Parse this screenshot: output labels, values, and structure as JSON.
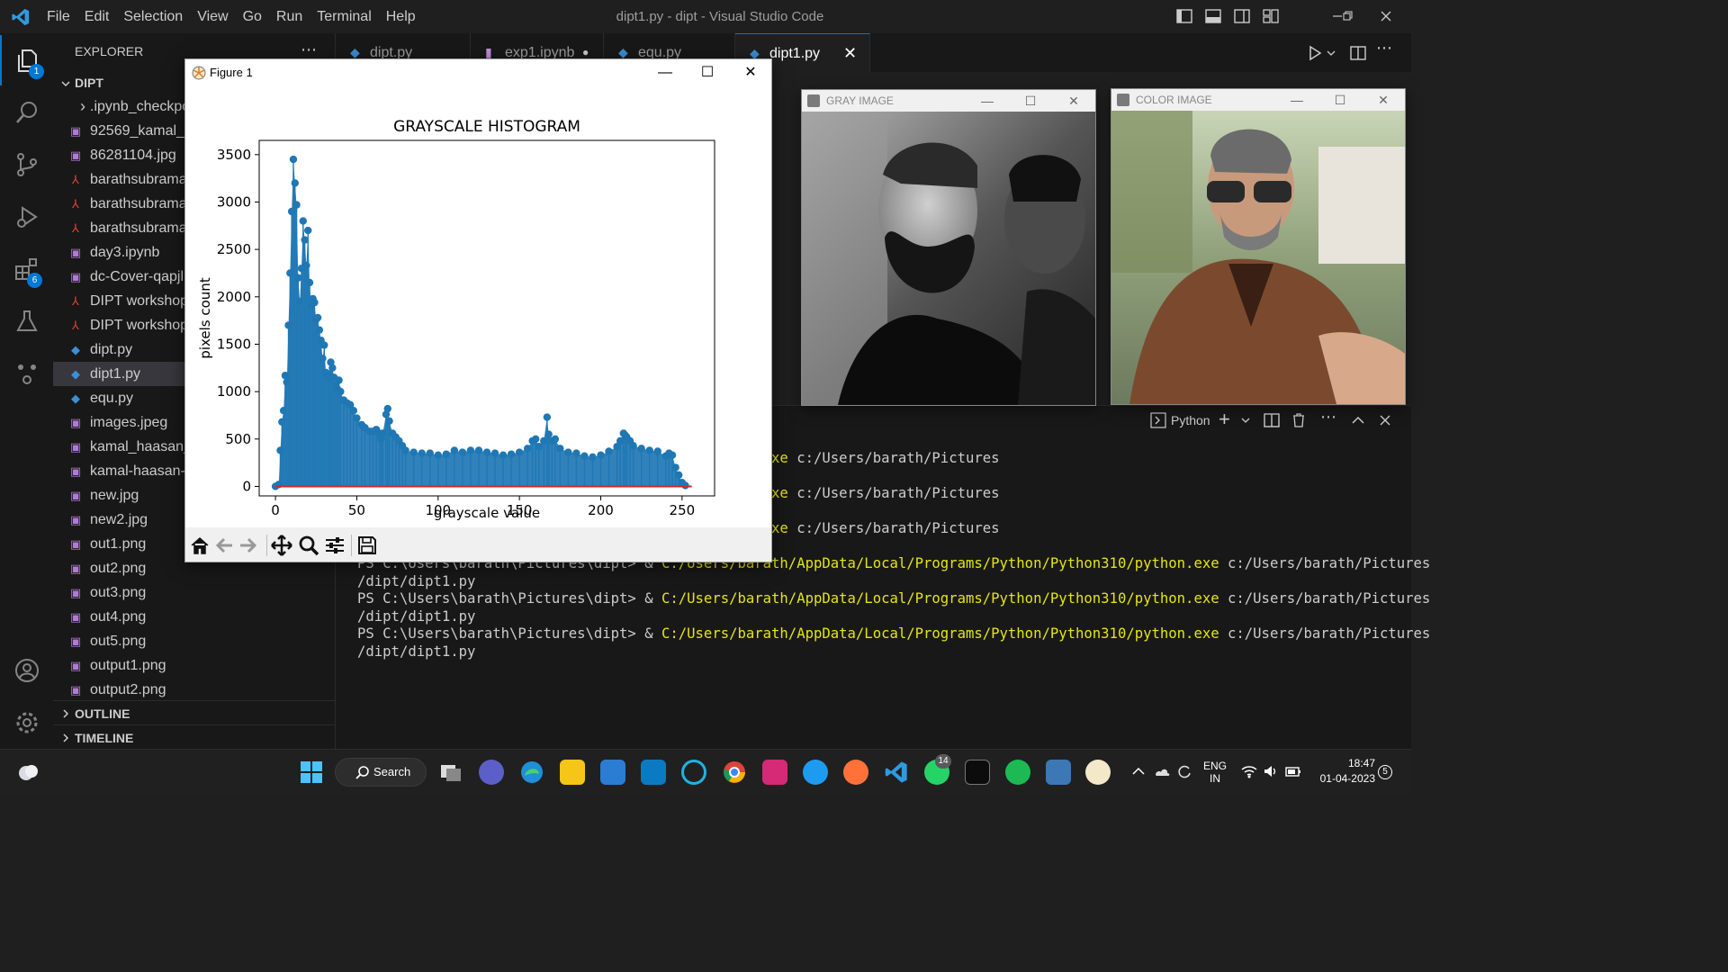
{
  "menu": {
    "items": [
      "File",
      "Edit",
      "Selection",
      "View",
      "Go",
      "Run",
      "Terminal",
      "Help"
    ],
    "window_title": "dipt1.py - dipt - Visual Studio Code"
  },
  "activity": {
    "explorer_badge": "1",
    "extensions_badge": "6"
  },
  "sidebar": {
    "header": "EXPLORER",
    "folder": "DIPT",
    "files": [
      {
        "name": ".ipynb_checkpo",
        "kind": "folder"
      },
      {
        "name": "92569_kamal_h",
        "kind": "image"
      },
      {
        "name": "86281104.jpg",
        "kind": "image"
      },
      {
        "name": "barathsubrama",
        "kind": "pdf"
      },
      {
        "name": "barathsubrama",
        "kind": "pdf"
      },
      {
        "name": "barathsubrama",
        "kind": "pdf"
      },
      {
        "name": "day3.ipynb",
        "kind": "notebook"
      },
      {
        "name": "dc-Cover-qapjl",
        "kind": "image"
      },
      {
        "name": "DIPT workshop",
        "kind": "pdf"
      },
      {
        "name": "DIPT workshop",
        "kind": "pdf"
      },
      {
        "name": "dipt.py",
        "kind": "python"
      },
      {
        "name": "dipt1.py",
        "kind": "python"
      },
      {
        "name": "equ.py",
        "kind": "python"
      },
      {
        "name": "images.jpeg",
        "kind": "image"
      },
      {
        "name": "kamal_haasan_",
        "kind": "image"
      },
      {
        "name": "kamal-haasan-",
        "kind": "image"
      },
      {
        "name": "new.jpg",
        "kind": "image"
      },
      {
        "name": "new2.jpg",
        "kind": "image"
      },
      {
        "name": "out1.png",
        "kind": "image"
      },
      {
        "name": "out2.png",
        "kind": "image"
      },
      {
        "name": "out3.png",
        "kind": "image"
      },
      {
        "name": "out4.png",
        "kind": "image"
      },
      {
        "name": "out5.png",
        "kind": "image"
      },
      {
        "name": "output1.png",
        "kind": "image"
      },
      {
        "name": "output2.png",
        "kind": "image"
      }
    ],
    "outline": "OUTLINE",
    "timeline": "TIMELINE"
  },
  "tabs": [
    {
      "label": "dipt.py"
    },
    {
      "label": "exp1.ipynb"
    },
    {
      "label": "equ.py"
    },
    {
      "label": "dipt1.py"
    }
  ],
  "terminal": {
    "shell_label": "Python",
    "lines": [
      {
        "prompt": "",
        "cmd": "/AppData/Local/Programs/Python/Python310/python.exe",
        "arg": " c:/Users/barath/Pictures"
      },
      {
        "prompt": "",
        "cmd": "/AppData/Local/Programs/Python/Python310/python.exe",
        "arg": " c:/Users/barath/Pictures"
      },
      {
        "prompt": "",
        "cmd": "/AppData/Local/Programs/Python/Python310/python.exe",
        "arg": " c:/Users/barath/Pictures"
      },
      {
        "prompt": "PS C:\\Users\\barath\\Pictures\\dipt> & ",
        "cmd": "C:/Users/barath/AppData/Local/Programs/Python/Python310/python.exe",
        "arg": " c:/Users/barath/Pictures"
      },
      {
        "prompt": "/dipt/dipt1.py",
        "cmd": "",
        "arg": ""
      },
      {
        "prompt": "PS C:\\Users\\barath\\Pictures\\dipt> & ",
        "cmd": "C:/Users/barath/AppData/Local/Programs/Python/Python310/python.exe",
        "arg": " c:/Users/barath/Pictures"
      },
      {
        "prompt": "/dipt/dipt1.py",
        "cmd": "",
        "arg": ""
      },
      {
        "prompt": "PS C:\\Users\\barath\\Pictures\\dipt> & ",
        "cmd": "C:/Users/barath/AppData/Local/Programs/Python/Python310/python.exe",
        "arg": " c:/Users/barath/Pictures"
      },
      {
        "prompt": "/dipt/dipt1.py",
        "cmd": "",
        "arg": ""
      }
    ]
  },
  "figure": {
    "window_title": "Figure 1"
  },
  "gray_window": {
    "title": "GRAY IMAGE"
  },
  "color_window": {
    "title": "COLOR IMAGE"
  },
  "taskbar": {
    "search_label": "Search",
    "lang_top": "ENG",
    "lang_bottom": "IN",
    "time": "18:47",
    "date": "01-04-2023",
    "notif_count": "5",
    "whatsapp_badge": "14"
  },
  "chart_data": {
    "type": "stem",
    "title": "GRAYSCALE HISTOGRAM",
    "xlabel": "grayscale value",
    "ylabel": "pixels count",
    "xlim": [
      -10,
      270
    ],
    "ylim": [
      -100,
      3650
    ],
    "xticks": [
      0,
      50,
      100,
      150,
      200,
      250
    ],
    "yticks": [
      0,
      500,
      1000,
      1500,
      2000,
      2500,
      3000,
      3500
    ],
    "color": "#1f77b4",
    "baseline_color": "#d62728",
    "points": [
      [
        0,
        0
      ],
      [
        2,
        20
      ],
      [
        3,
        380
      ],
      [
        4,
        680
      ],
      [
        5,
        800
      ],
      [
        6,
        1170
      ],
      [
        7,
        1100
      ],
      [
        8,
        1700
      ],
      [
        9,
        2250
      ],
      [
        10,
        2900
      ],
      [
        11,
        3450
      ],
      [
        12,
        3200
      ],
      [
        13,
        2970
      ],
      [
        14,
        2200
      ],
      [
        15,
        1950
      ],
      [
        16,
        2300
      ],
      [
        17,
        2800
      ],
      [
        18,
        2600
      ],
      [
        19,
        2330
      ],
      [
        20,
        2700
      ],
      [
        21,
        2150
      ],
      [
        22,
        1900
      ],
      [
        23,
        1980
      ],
      [
        24,
        1940
      ],
      [
        25,
        1760
      ],
      [
        26,
        1780
      ],
      [
        27,
        1650
      ],
      [
        28,
        1540
      ],
      [
        29,
        1350
      ],
      [
        30,
        1490
      ],
      [
        31,
        1200
      ],
      [
        32,
        1190
      ],
      [
        33,
        1150
      ],
      [
        34,
        1310
      ],
      [
        35,
        1250
      ],
      [
        36,
        1150
      ],
      [
        37,
        1070
      ],
      [
        38,
        1030
      ],
      [
        39,
        1120
      ],
      [
        40,
        1000
      ],
      [
        42,
        910
      ],
      [
        44,
        880
      ],
      [
        46,
        860
      ],
      [
        48,
        800
      ],
      [
        50,
        720
      ],
      [
        53,
        650
      ],
      [
        55,
        620
      ],
      [
        58,
        580
      ],
      [
        60,
        580
      ],
      [
        62,
        600
      ],
      [
        64,
        560
      ],
      [
        65,
        500
      ],
      [
        66,
        560
      ],
      [
        68,
        760
      ],
      [
        69,
        820
      ],
      [
        70,
        690
      ],
      [
        72,
        560
      ],
      [
        74,
        520
      ],
      [
        76,
        480
      ],
      [
        78,
        430
      ],
      [
        80,
        380
      ],
      [
        85,
        360
      ],
      [
        90,
        350
      ],
      [
        95,
        350
      ],
      [
        100,
        330
      ],
      [
        105,
        340
      ],
      [
        110,
        380
      ],
      [
        115,
        360
      ],
      [
        120,
        380
      ],
      [
        125,
        380
      ],
      [
        130,
        360
      ],
      [
        135,
        350
      ],
      [
        140,
        330
      ],
      [
        145,
        340
      ],
      [
        150,
        360
      ],
      [
        155,
        400
      ],
      [
        158,
        480
      ],
      [
        160,
        500
      ],
      [
        162,
        420
      ],
      [
        165,
        480
      ],
      [
        167,
        730
      ],
      [
        168,
        550
      ],
      [
        170,
        480
      ],
      [
        172,
        500
      ],
      [
        175,
        400
      ],
      [
        180,
        360
      ],
      [
        185,
        350
      ],
      [
        190,
        320
      ],
      [
        195,
        310
      ],
      [
        200,
        330
      ],
      [
        205,
        370
      ],
      [
        210,
        420
      ],
      [
        212,
        480
      ],
      [
        214,
        560
      ],
      [
        215,
        540
      ],
      [
        216,
        520
      ],
      [
        218,
        480
      ],
      [
        220,
        430
      ],
      [
        225,
        400
      ],
      [
        230,
        380
      ],
      [
        235,
        370
      ],
      [
        240,
        320
      ],
      [
        242,
        350
      ],
      [
        244,
        330
      ],
      [
        246,
        200
      ],
      [
        248,
        120
      ],
      [
        250,
        40
      ],
      [
        252,
        10
      ]
    ]
  }
}
